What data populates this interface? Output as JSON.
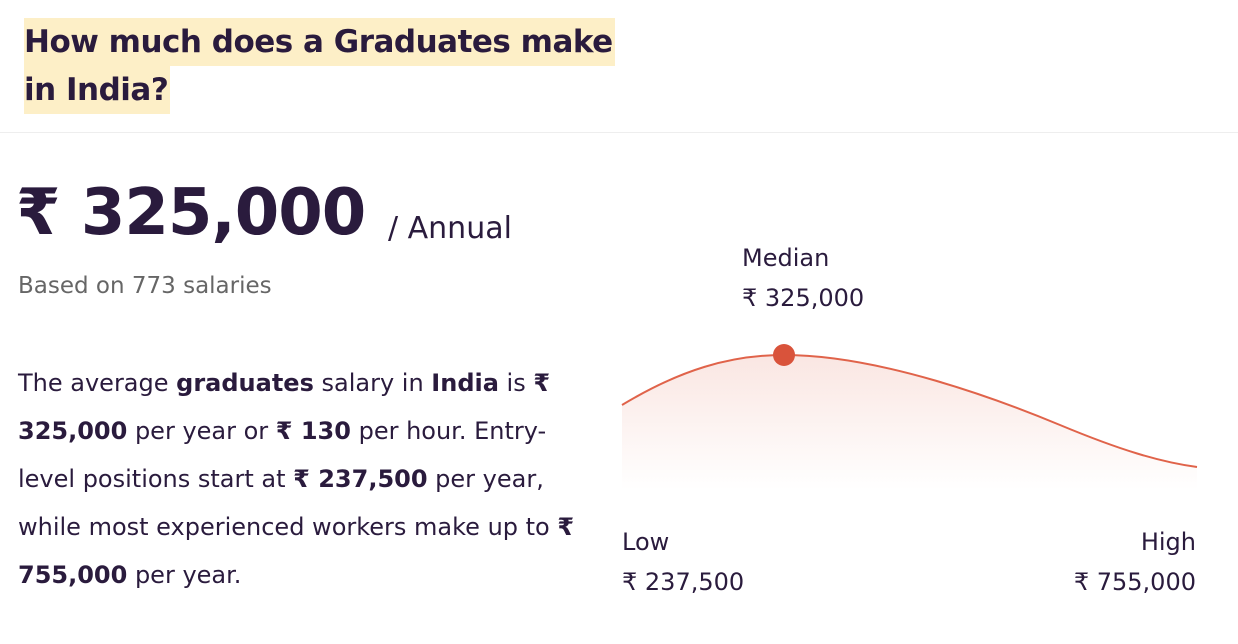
{
  "header": {
    "title_lines": [
      "How much does a Graduates make",
      "in India?"
    ]
  },
  "summary": {
    "amount": "₹ 325,000",
    "period": "/ Annual",
    "basis": "Based on 773 salaries"
  },
  "description": [
    "The average ",
    "graduates",
    " salary in ",
    "India",
    " is ",
    "₹ 325,000",
    " per year or ",
    "₹ 130",
    " per hour. Entry-level positions start at ",
    "₹ 237,500",
    " per year, while most experienced workers make up to ",
    "₹ 755,000",
    " per year."
  ],
  "range": {
    "median_label": "Median",
    "median_value": "₹ 325,000",
    "low_label": "Low",
    "low_value": "₹ 237,500",
    "high_label": "High",
    "high_value": "₹ 755,000"
  }
}
